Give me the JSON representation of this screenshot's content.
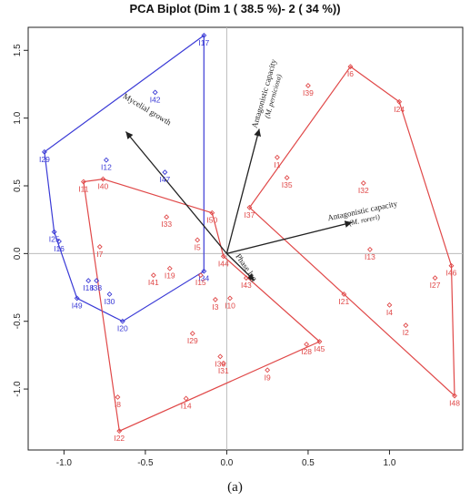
{
  "chart_data": {
    "type": "scatter",
    "title": "PCA Biplot (Dim 1 ( 38.5 %)- 2 ( 34 %))",
    "caption": "(a)",
    "xlim": [
      -1.22,
      1.45
    ],
    "ylim": [
      -1.45,
      1.67
    ],
    "x_ticks": [
      -1.0,
      -0.5,
      0.0,
      0.5,
      1.0
    ],
    "x_tick_labels": [
      "-1.0",
      "-0.5",
      "0.0",
      "0.5",
      "1.0"
    ],
    "y_ticks": [
      -1.0,
      -0.5,
      0.0,
      0.5,
      1.0,
      1.5
    ],
    "y_tick_labels": [
      "-1.0",
      "-0.5",
      "0.0",
      "0.5",
      "1.0",
      "1.5"
    ],
    "grid": false,
    "reference_lines": {
      "x": 0,
      "y": 0
    },
    "colors": {
      "blue": "#3a3ad6",
      "red": "#e04848",
      "arrow": "#222222",
      "axis": "#bbbbbb"
    },
    "groups": [
      {
        "color": "blue",
        "hull": [
          "I17",
          "I29",
          "I25",
          "I49",
          "I20",
          "I34"
        ],
        "points": [
          {
            "label": "I17",
            "x": -0.14,
            "y": 1.61
          },
          {
            "label": "I42",
            "x": -0.44,
            "y": 1.19
          },
          {
            "label": "I29",
            "x": -1.12,
            "y": 0.75
          },
          {
            "label": "I12",
            "x": -0.74,
            "y": 0.69
          },
          {
            "label": "I47",
            "x": -0.38,
            "y": 0.6
          },
          {
            "label": "I25",
            "x": -1.06,
            "y": 0.16
          },
          {
            "label": "I16",
            "x": -1.03,
            "y": 0.09
          },
          {
            "label": "I18",
            "x": -0.85,
            "y": -0.2
          },
          {
            "label": "I38",
            "x": -0.8,
            "y": -0.2
          },
          {
            "label": "I30",
            "x": -0.72,
            "y": -0.3
          },
          {
            "label": "I34",
            "x": -0.14,
            "y": -0.13
          },
          {
            "label": "I49",
            "x": -0.92,
            "y": -0.33
          },
          {
            "label": "I20",
            "x": -0.64,
            "y": -0.5
          }
        ]
      },
      {
        "color": "red",
        "hull": [
          "I40",
          "I50",
          "I44",
          "I45",
          "I22",
          "I11"
        ],
        "points": [
          {
            "label": "I40",
            "x": -0.76,
            "y": 0.55
          },
          {
            "label": "I11",
            "x": -0.88,
            "y": 0.53
          },
          {
            "label": "I33",
            "x": -0.37,
            "y": 0.27
          },
          {
            "label": "I50",
            "x": -0.09,
            "y": 0.3
          },
          {
            "label": "I7",
            "x": -0.78,
            "y": 0.05
          },
          {
            "label": "I5",
            "x": -0.18,
            "y": 0.1
          },
          {
            "label": "I19",
            "x": -0.35,
            "y": -0.11
          },
          {
            "label": "I41",
            "x": -0.45,
            "y": -0.16
          },
          {
            "label": "I15",
            "x": -0.16,
            "y": -0.16
          },
          {
            "label": "I3",
            "x": -0.07,
            "y": -0.34
          },
          {
            "label": "I10",
            "x": 0.02,
            "y": -0.33
          },
          {
            "label": "I29",
            "x": -0.21,
            "y": -0.59
          },
          {
            "label": "I36",
            "x": -0.04,
            "y": -0.76
          },
          {
            "label": "I31",
            "x": -0.02,
            "y": -0.81
          },
          {
            "label": "I9",
            "x": 0.25,
            "y": -0.86
          },
          {
            "label": "I28",
            "x": 0.49,
            "y": -0.67
          },
          {
            "label": "I45",
            "x": 0.57,
            "y": -0.65
          },
          {
            "label": "I8",
            "x": -0.67,
            "y": -1.06
          },
          {
            "label": "I14",
            "x": -0.25,
            "y": -1.07
          },
          {
            "label": "I22",
            "x": -0.66,
            "y": -1.31
          },
          {
            "label": "I44",
            "x": -0.02,
            "y": -0.02
          },
          {
            "label": "I43",
            "x": 0.12,
            "y": -0.18
          }
        ]
      },
      {
        "color": "red",
        "hull": [
          "I6",
          "I24",
          "I46",
          "I48",
          "I28",
          "I37"
        ],
        "points": [
          {
            "label": "I6",
            "x": 0.76,
            "y": 1.38
          },
          {
            "label": "I39",
            "x": 0.5,
            "y": 1.24
          },
          {
            "label": "I24",
            "x": 1.06,
            "y": 1.12
          },
          {
            "label": "I1",
            "x": 0.31,
            "y": 0.71
          },
          {
            "label": "I35",
            "x": 0.37,
            "y": 0.56
          },
          {
            "label": "I32",
            "x": 0.84,
            "y": 0.52
          },
          {
            "label": "I37",
            "x": 0.14,
            "y": 0.34
          },
          {
            "label": "I13",
            "x": 0.88,
            "y": 0.03
          },
          {
            "label": "I46",
            "x": 1.38,
            "y": -0.09
          },
          {
            "label": "I27",
            "x": 1.28,
            "y": -0.18
          },
          {
            "label": "I21",
            "x": 0.72,
            "y": -0.3
          },
          {
            "label": "I4",
            "x": 1.0,
            "y": -0.38
          },
          {
            "label": "I2",
            "x": 1.1,
            "y": -0.53
          },
          {
            "label": "I48",
            "x": 1.4,
            "y": -1.05
          }
        ]
      }
    ],
    "arrows": [
      {
        "label": "Mycelial growth",
        "italic": "",
        "x": -0.62,
        "y": 0.9,
        "angle": 31
      },
      {
        "label": "Antagonistic capacity",
        "italic": "(M. perniciosa)",
        "x": 0.2,
        "y": 0.92,
        "angle": -74
      },
      {
        "label": "Antagonistic capacity",
        "italic": "(M. roreri)",
        "x": 0.77,
        "y": 0.23,
        "angle": -12
      },
      {
        "label": "Phase lag",
        "italic": "",
        "x": 0.17,
        "y": -0.2,
        "angle": 55
      }
    ]
  }
}
